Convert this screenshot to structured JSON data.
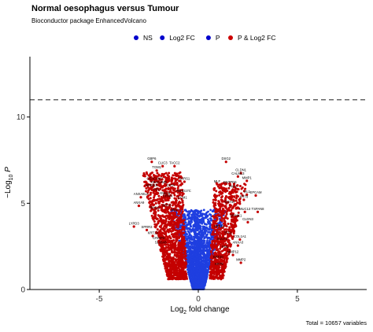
{
  "chart_data": {
    "type": "scatter",
    "title": "Normal oesophagus versus Tumour",
    "subtitle": "Bioconductor package EnhancedVolcano",
    "xlabel": "Log2 fold change",
    "ylabel": "-Log10 P",
    "caption": "Total = 10657 variables",
    "xlim": [
      -8.5,
      8.5
    ],
    "ylim": [
      0,
      13.5
    ],
    "x_ticks": [
      -5,
      0,
      5
    ],
    "y_ticks": [
      0,
      5,
      10
    ],
    "hline": 11,
    "legend_position": "top",
    "legend": [
      {
        "name": "NS",
        "color": "#0000cc"
      },
      {
        "name": "Log2 FC",
        "color": "#0000cc"
      },
      {
        "name": "P",
        "color": "#0000cc"
      },
      {
        "name": "P & Log2 FC",
        "color": "#cc0000"
      }
    ],
    "series_colors": {
      "ns": "#1f3fe0",
      "sig": "#c40000"
    },
    "labels": [
      {
        "text": "GBP6",
        "x": -2.35,
        "y": 7.4
      },
      {
        "text": "CLIC3",
        "x": -1.8,
        "y": 7.15
      },
      {
        "text": "TACC2",
        "x": -1.2,
        "y": 7.15
      },
      {
        "text": "TGM1",
        "x": -2.1,
        "y": 6.9
      },
      {
        "text": "CEACAM7",
        "x": -2.2,
        "y": 6.25
      },
      {
        "text": "CEACAM3",
        "x": -2.0,
        "y": 6.05
      },
      {
        "text": "SARS1",
        "x": -0.7,
        "y": 6.25
      },
      {
        "text": "SPINK5",
        "x": -2.35,
        "y": 5.85
      },
      {
        "text": "CSTA",
        "x": -1.4,
        "y": 5.85
      },
      {
        "text": "PPL",
        "x": -2.1,
        "y": 5.6
      },
      {
        "text": "ABHD17C",
        "x": -0.75,
        "y": 5.55
      },
      {
        "text": "ANXA1",
        "x": -1.7,
        "y": 5.4
      },
      {
        "text": "ANXA8L2",
        "x": -2.9,
        "y": 5.35
      },
      {
        "text": "CRNN",
        "x": -1.55,
        "y": 5.25
      },
      {
        "text": "ECM1",
        "x": -0.8,
        "y": 5.15
      },
      {
        "text": "ANXA9",
        "x": -3.0,
        "y": 4.85
      },
      {
        "text": "KRT4",
        "x": -1.6,
        "y": 4.7
      },
      {
        "text": "RHCG",
        "x": -2.2,
        "y": 4.55
      },
      {
        "text": "MAL",
        "x": -1.2,
        "y": 4.45
      },
      {
        "text": "LYPD3",
        "x": -3.25,
        "y": 3.65
      },
      {
        "text": "SPRR3",
        "x": -2.6,
        "y": 3.45
      },
      {
        "text": "KRT13",
        "x": -2.3,
        "y": 3.1
      },
      {
        "text": "CRISP3",
        "x": -2.0,
        "y": 2.8
      },
      {
        "text": "S100A8",
        "x": -1.9,
        "y": 2.55
      },
      {
        "text": "DSG2",
        "x": 1.4,
        "y": 7.4
      },
      {
        "text": "CLDN1",
        "x": 2.15,
        "y": 6.75
      },
      {
        "text": "CALML3",
        "x": 2.0,
        "y": 6.55
      },
      {
        "text": "MMP1",
        "x": 2.45,
        "y": 6.3
      },
      {
        "text": "ENTPD6",
        "x": 1.6,
        "y": 6.05
      },
      {
        "text": "MLF",
        "x": 0.95,
        "y": 6.1
      },
      {
        "text": "PKP2",
        "x": 1.75,
        "y": 5.8
      },
      {
        "text": "VIL1",
        "x": 2.45,
        "y": 5.5
      },
      {
        "text": "EPCAM",
        "x": 2.9,
        "y": 5.45
      },
      {
        "text": "KRT8",
        "x": 2.3,
        "y": 5.2
      },
      {
        "text": "CDH17",
        "x": 1.6,
        "y": 4.9
      },
      {
        "text": "MUC13",
        "x": 2.35,
        "y": 4.5
      },
      {
        "text": "TSPAN8",
        "x": 3.0,
        "y": 4.5
      },
      {
        "text": "SPINK1",
        "x": 1.9,
        "y": 4.1
      },
      {
        "text": "CLDN3",
        "x": 2.5,
        "y": 3.9
      },
      {
        "text": "KRT18",
        "x": 1.05,
        "y": 3.5
      },
      {
        "text": "TFF1",
        "x": 1.5,
        "y": 3.1
      },
      {
        "text": "COL1A1",
        "x": 2.1,
        "y": 2.9
      },
      {
        "text": "SULF1",
        "x": 1.2,
        "y": 2.75
      },
      {
        "text": "ANXA3",
        "x": 2.0,
        "y": 2.55
      },
      {
        "text": "FN1",
        "x": 1.35,
        "y": 2.3
      },
      {
        "text": "MMP12",
        "x": 1.75,
        "y": 2.0
      },
      {
        "text": "KRT20",
        "x": 1.0,
        "y": 1.7
      },
      {
        "text": "MMP2",
        "x": 2.15,
        "y": 1.55
      },
      {
        "text": "KRT5",
        "x": 1.05,
        "y": 1.3
      }
    ]
  }
}
